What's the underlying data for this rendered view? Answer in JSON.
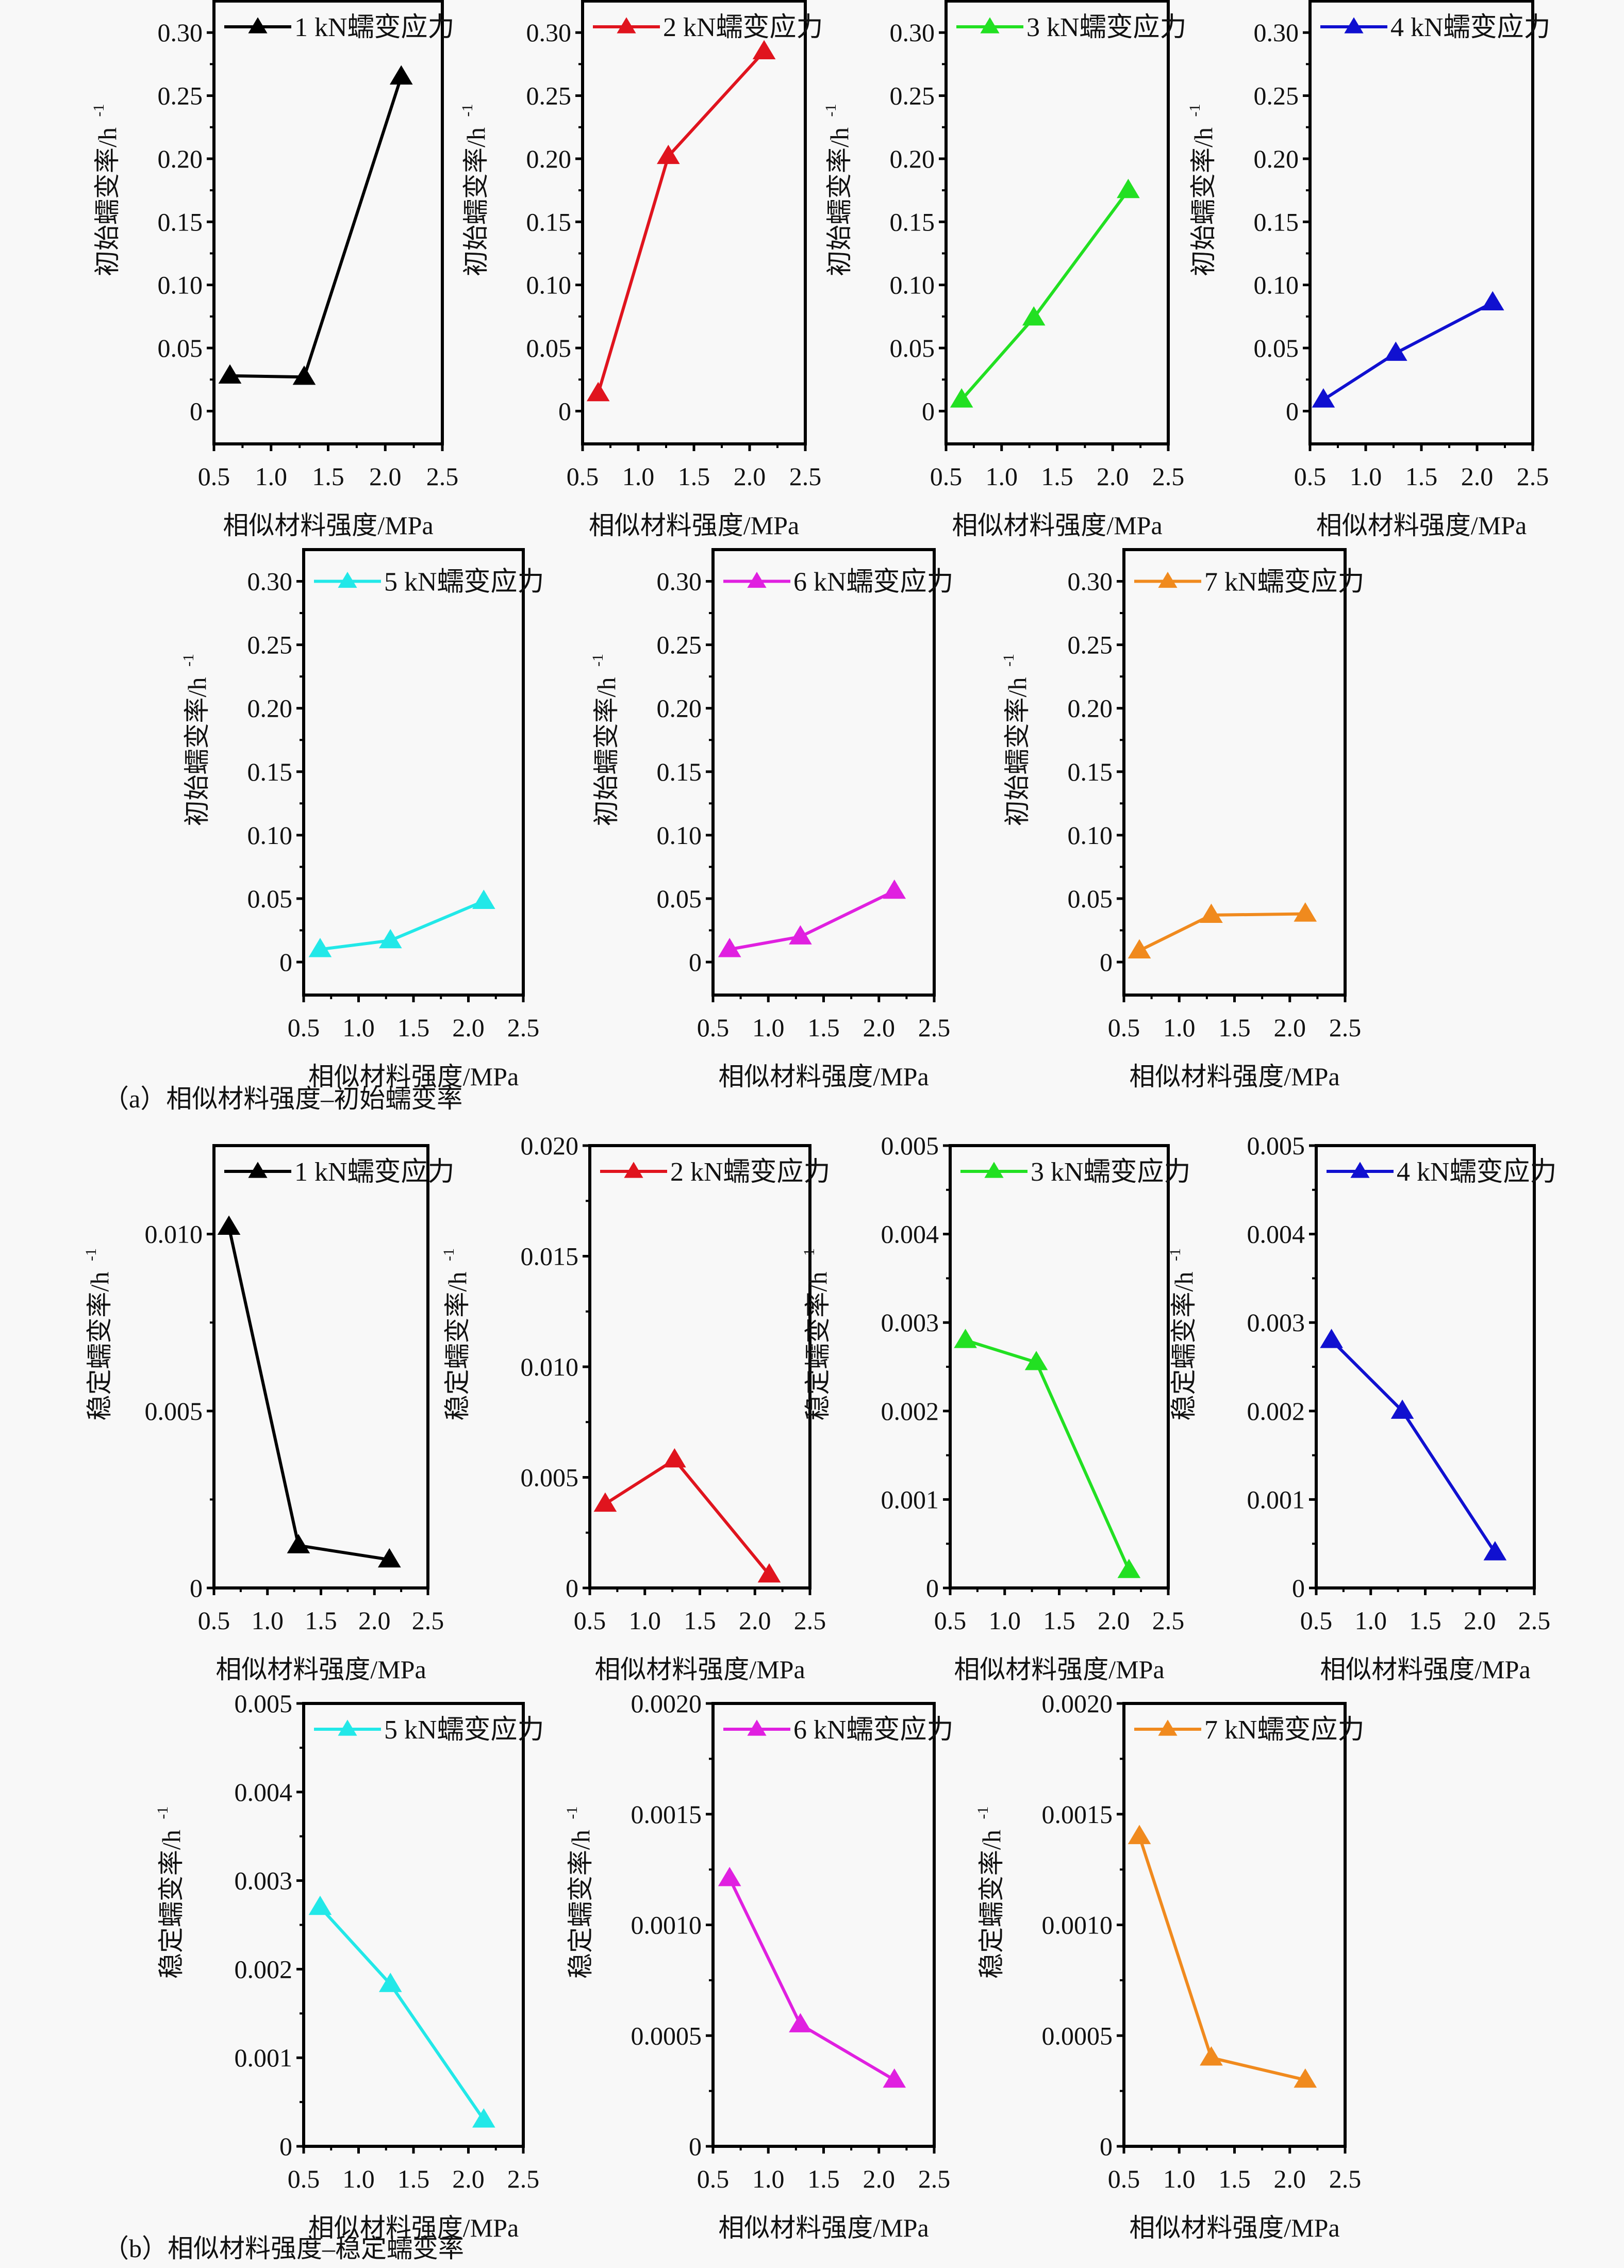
{
  "captions": {
    "a": "（a）相似材料强度–初始蠕变率",
    "b": "（b）相似材料强度–稳定蠕变率"
  },
  "chart_data": [
    {
      "id": "a1",
      "type": "line",
      "group": "a",
      "legend": "1 kN蠕变应力",
      "color": "#000000",
      "xlabel": "相似材料强度/MPa",
      "ylabel": "初始蠕变率/h",
      "ylabel_sup": "-1",
      "x": [
        0.64,
        1.29,
        2.14
      ],
      "y": [
        0.028,
        0.027,
        0.265
      ],
      "xlim": [
        0.5,
        2.5
      ],
      "ylim": [
        -0.026,
        0.325
      ],
      "xticks": [
        "0.5",
        "1.0",
        "1.5",
        "2.0",
        "2.5"
      ],
      "yticks": [
        "0",
        "0.05",
        "0.10",
        "0.15",
        "0.20",
        "0.25",
        "0.30"
      ]
    },
    {
      "id": "a2",
      "type": "line",
      "group": "a",
      "legend": "2 kN蠕变应力",
      "color": "#e0141e",
      "xlabel": "相似材料强度/MPa",
      "ylabel": "初始蠕变率/h",
      "ylabel_sup": "-1",
      "x": [
        0.64,
        1.27,
        2.13
      ],
      "y": [
        0.014,
        0.202,
        0.285
      ],
      "xlim": [
        0.5,
        2.5
      ],
      "ylim": [
        -0.026,
        0.325
      ],
      "xticks": [
        "0.5",
        "1.0",
        "1.5",
        "2.0",
        "2.5"
      ],
      "yticks": [
        "0",
        "0.05",
        "0.10",
        "0.15",
        "0.20",
        "0.25",
        "0.30"
      ]
    },
    {
      "id": "a3",
      "type": "line",
      "group": "a",
      "legend": "3 kN蠕变应力",
      "color": "#22e022",
      "xlabel": "相似材料强度/MPa",
      "ylabel": "初始蠕变率/h",
      "ylabel_sup": "-1",
      "x": [
        0.64,
        1.29,
        2.14
      ],
      "y": [
        0.009,
        0.074,
        0.175
      ],
      "xlim": [
        0.5,
        2.5
      ],
      "ylim": [
        -0.026,
        0.325
      ],
      "xticks": [
        "0.5",
        "1.0",
        "1.5",
        "2.0",
        "2.5"
      ],
      "yticks": [
        "0",
        "0.05",
        "0.10",
        "0.15",
        "0.20",
        "0.25",
        "0.30"
      ]
    },
    {
      "id": "a4",
      "type": "line",
      "group": "a",
      "legend": "4 kN蠕变应力",
      "color": "#1010d0",
      "xlabel": "相似材料强度/MPa",
      "ylabel": "初始蠕变率/h",
      "ylabel_sup": "-1",
      "x": [
        0.62,
        1.27,
        2.14
      ],
      "y": [
        0.009,
        0.046,
        0.086
      ],
      "xlim": [
        0.5,
        2.5
      ],
      "ylim": [
        -0.026,
        0.325
      ],
      "xticks": [
        "0.5",
        "1.0",
        "1.5",
        "2.0",
        "2.5"
      ],
      "yticks": [
        "0",
        "0.05",
        "0.10",
        "0.15",
        "0.20",
        "0.25",
        "0.30"
      ]
    },
    {
      "id": "a5",
      "type": "line",
      "group": "a",
      "legend": "5 kN蠕变应力",
      "color": "#22e8e8",
      "xlabel": "相似材料强度/MPa",
      "ylabel": "初始蠕变率/h",
      "ylabel_sup": "-1",
      "x": [
        0.65,
        1.29,
        2.14
      ],
      "y": [
        0.01,
        0.017,
        0.048
      ],
      "xlim": [
        0.5,
        2.5
      ],
      "ylim": [
        -0.026,
        0.325
      ],
      "xticks": [
        "0.5",
        "1.0",
        "1.5",
        "2.0",
        "2.5"
      ],
      "yticks": [
        "0",
        "0.05",
        "0.10",
        "0.15",
        "0.20",
        "0.25",
        "0.30"
      ]
    },
    {
      "id": "a6",
      "type": "line",
      "group": "a",
      "legend": "6 kN蠕变应力",
      "color": "#e020e0",
      "xlabel": "相似材料强度/MPa",
      "ylabel": "初始蠕变率/h",
      "ylabel_sup": "-1",
      "x": [
        0.65,
        1.29,
        2.14
      ],
      "y": [
        0.01,
        0.02,
        0.056
      ],
      "xlim": [
        0.5,
        2.5
      ],
      "ylim": [
        -0.026,
        0.325
      ],
      "xticks": [
        "0.5",
        "1.0",
        "1.5",
        "2.0",
        "2.5"
      ],
      "yticks": [
        "0",
        "0.05",
        "0.10",
        "0.15",
        "0.20",
        "0.25",
        "0.30"
      ]
    },
    {
      "id": "a7",
      "type": "line",
      "group": "a",
      "legend": "7 kN蠕变应力",
      "color": "#f08a1e",
      "xlabel": "相似材料强度/MPa",
      "ylabel": "初始蠕变率/h",
      "ylabel_sup": "-1",
      "x": [
        0.64,
        1.29,
        2.14
      ],
      "y": [
        0.009,
        0.037,
        0.038
      ],
      "xlim": [
        0.5,
        2.5
      ],
      "ylim": [
        -0.026,
        0.325
      ],
      "xticks": [
        "0.5",
        "1.0",
        "1.5",
        "2.0",
        "2.5"
      ],
      "yticks": [
        "0",
        "0.05",
        "0.10",
        "0.15",
        "0.20",
        "0.25",
        "0.30"
      ]
    },
    {
      "id": "b1",
      "type": "line",
      "group": "b",
      "legend": "1 kN蠕变应力",
      "color": "#000000",
      "xlabel": "相似材料强度/MPa",
      "ylabel": "稳定蠕变率/h",
      "ylabel_sup": "-1",
      "x": [
        0.64,
        1.29,
        2.14
      ],
      "y": [
        0.0102,
        0.0012,
        0.0008
      ],
      "xlim": [
        0.5,
        2.5
      ],
      "ylim": [
        0,
        0.0125
      ],
      "xticks": [
        "0.5",
        "1.0",
        "1.5",
        "2.0",
        "2.5"
      ],
      "yticks": [
        "0",
        "0.005",
        "0.010"
      ],
      "ytick_values": [
        0,
        0.005,
        0.01
      ]
    },
    {
      "id": "b2",
      "type": "line",
      "group": "b",
      "legend": "2 kN蠕变应力",
      "color": "#e0141e",
      "xlabel": "相似材料强度/MPa",
      "ylabel": "稳定蠕变率/h",
      "ylabel_sup": "-1",
      "x": [
        0.64,
        1.27,
        2.13
      ],
      "y": [
        0.0038,
        0.0058,
        0.0006
      ],
      "xlim": [
        0.5,
        2.5
      ],
      "ylim": [
        0,
        0.02
      ],
      "xticks": [
        "0.5",
        "1.0",
        "1.5",
        "2.0",
        "2.5"
      ],
      "yticks": [
        "0",
        "0.005",
        "0.010",
        "0.015",
        "0.020"
      ],
      "ytick_values": [
        0,
        0.005,
        0.01,
        0.015,
        0.02
      ]
    },
    {
      "id": "b3",
      "type": "line",
      "group": "b",
      "legend": "3 kN蠕变应力",
      "color": "#22e022",
      "xlabel": "相似材料强度/MPa",
      "ylabel": "稳定蠕变率/h",
      "ylabel_sup": "-1",
      "x": [
        0.64,
        1.29,
        2.14
      ],
      "y": [
        0.0028,
        0.00255,
        0.0002
      ],
      "xlim": [
        0.5,
        2.5
      ],
      "ylim": [
        0,
        0.005
      ],
      "xticks": [
        "0.5",
        "1.0",
        "1.5",
        "2.0",
        "2.5"
      ],
      "yticks": [
        "0",
        "0.001",
        "0.002",
        "0.003",
        "0.004",
        "0.005"
      ],
      "ytick_values": [
        0,
        0.001,
        0.002,
        0.003,
        0.004,
        0.005
      ]
    },
    {
      "id": "b4",
      "type": "line",
      "group": "b",
      "legend": "4 kN蠕变应力",
      "color": "#1010d0",
      "xlabel": "相似材料强度/MPa",
      "ylabel": "稳定蠕变率/h",
      "ylabel_sup": "-1",
      "x": [
        0.64,
        1.29,
        2.14
      ],
      "y": [
        0.0028,
        0.002,
        0.0004
      ],
      "xlim": [
        0.5,
        2.5
      ],
      "ylim": [
        0,
        0.005
      ],
      "xticks": [
        "0.5",
        "1.0",
        "1.5",
        "2.0",
        "2.5"
      ],
      "yticks": [
        "0",
        "0.001",
        "0.002",
        "0.003",
        "0.004",
        "0.005"
      ],
      "ytick_values": [
        0,
        0.001,
        0.002,
        0.003,
        0.004,
        0.005
      ]
    },
    {
      "id": "b5",
      "type": "line",
      "group": "b",
      "legend": "5 kN蠕变应力",
      "color": "#22e8e8",
      "xlabel": "相似材料强度/MPa",
      "ylabel": "稳定蠕变率/h",
      "ylabel_sup": "-1",
      "x": [
        0.65,
        1.29,
        2.14
      ],
      "y": [
        0.0027,
        0.00183,
        0.0003
      ],
      "xlim": [
        0.5,
        2.5
      ],
      "ylim": [
        0,
        0.005
      ],
      "xticks": [
        "0.5",
        "1.0",
        "1.5",
        "2.0",
        "2.5"
      ],
      "yticks": [
        "0",
        "0.001",
        "0.002",
        "0.003",
        "0.004",
        "0.005"
      ],
      "ytick_values": [
        0,
        0.001,
        0.002,
        0.003,
        0.004,
        0.005
      ]
    },
    {
      "id": "b6",
      "type": "line",
      "group": "b",
      "legend": "6 kN蠕变应力",
      "color": "#e020e0",
      "xlabel": "相似材料强度/MPa",
      "ylabel": "稳定蠕变率/h",
      "ylabel_sup": "-1",
      "x": [
        0.65,
        1.29,
        2.14
      ],
      "y": [
        0.00121,
        0.00055,
        0.0003
      ],
      "xlim": [
        0.5,
        2.5
      ],
      "ylim": [
        0,
        0.002
      ],
      "xticks": [
        "0.5",
        "1.0",
        "1.5",
        "2.0",
        "2.5"
      ],
      "yticks": [
        "0",
        "0.0005",
        "0.0010",
        "0.0015",
        "0.0020"
      ],
      "ytick_values": [
        0,
        0.0005,
        0.001,
        0.0015,
        0.002
      ]
    },
    {
      "id": "b7",
      "type": "line",
      "group": "b",
      "legend": "7 kN蠕变应力",
      "color": "#f08a1e",
      "xlabel": "相似材料强度/MPa",
      "ylabel": "稳定蠕变率/h",
      "ylabel_sup": "-1",
      "x": [
        0.64,
        1.29,
        2.14
      ],
      "y": [
        0.0014,
        0.0004,
        0.0003
      ],
      "xlim": [
        0.5,
        2.5
      ],
      "ylim": [
        0,
        0.002
      ],
      "xticks": [
        "0.5",
        "1.0",
        "1.5",
        "2.0",
        "2.5"
      ],
      "yticks": [
        "0",
        "0.0005",
        "0.0010",
        "0.0015",
        "0.0020"
      ],
      "ytick_values": [
        0,
        0.0005,
        0.001,
        0.0015,
        0.002
      ]
    }
  ]
}
